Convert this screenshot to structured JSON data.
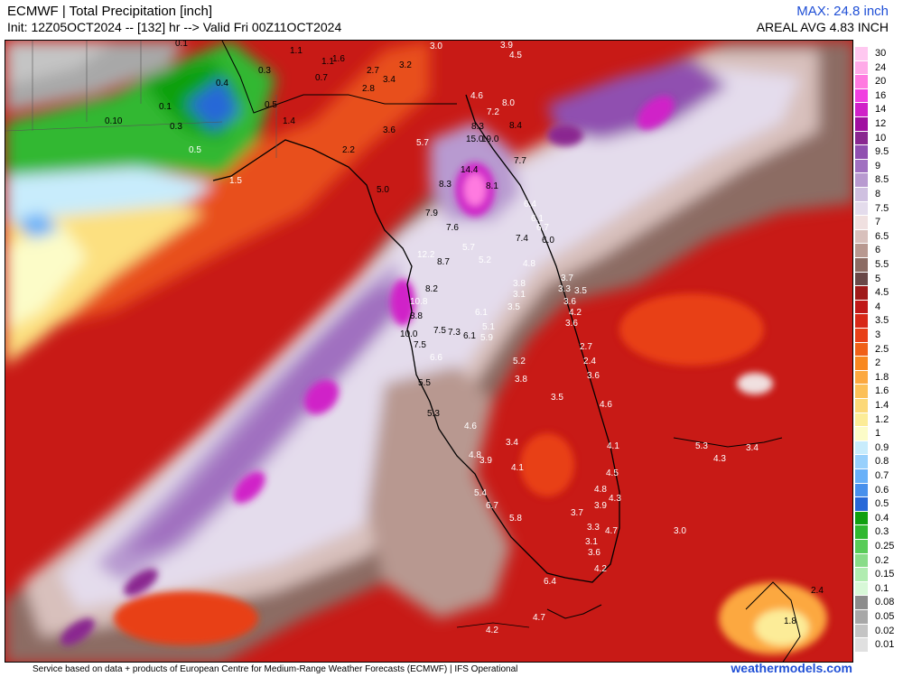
{
  "header": {
    "title": "ECMWF | Total Precipitation [inch]",
    "init": "Init: 12Z05OCT2024 -- [132] hr --> Valid Fri 00Z11OCT2024",
    "max": "MAX: 24.8 inch",
    "areal_avg": "AREAL AVG 4.83 INCH"
  },
  "footer": {
    "credit": "Service based on data + products of European Centre for Medium-Range Weather Forecasts (ECMWF) | IFS Operational",
    "brand": "weathermodels.com"
  },
  "legend": [
    {
      "label": "30",
      "color": "#ffc8f0"
    },
    {
      "label": "24",
      "color": "#ffaae8"
    },
    {
      "label": "20",
      "color": "#ff7ae0"
    },
    {
      "label": "16",
      "color": "#f040e0"
    },
    {
      "label": "14",
      "color": "#d020c8"
    },
    {
      "label": "12",
      "color": "#a010a0"
    },
    {
      "label": "10",
      "color": "#8a2890"
    },
    {
      "label": "9.5",
      "color": "#9050b0"
    },
    {
      "label": "9",
      "color": "#a070c0"
    },
    {
      "label": "8.5",
      "color": "#b89ad0"
    },
    {
      "label": "8",
      "color": "#cfc0e0"
    },
    {
      "label": "7.5",
      "color": "#e4dcec"
    },
    {
      "label": "7",
      "color": "#f0e0e0"
    },
    {
      "label": "6.5",
      "color": "#d8c0bc"
    },
    {
      "label": "6",
      "color": "#b89890"
    },
    {
      "label": "5.5",
      "color": "#8c6c64"
    },
    {
      "label": "5",
      "color": "#6a4848"
    },
    {
      "label": "4.5",
      "color": "#a01a1a"
    },
    {
      "label": "4",
      "color": "#c01818"
    },
    {
      "label": "3.5",
      "color": "#d82818"
    },
    {
      "label": "3",
      "color": "#e84018"
    },
    {
      "label": "2.5",
      "color": "#f06018"
    },
    {
      "label": "2",
      "color": "#f88820"
    },
    {
      "label": "1.8",
      "color": "#fca840"
    },
    {
      "label": "1.6",
      "color": "#fcc058"
    },
    {
      "label": "1.4",
      "color": "#fcd878"
    },
    {
      "label": "1.2",
      "color": "#fcec98"
    },
    {
      "label": "1",
      "color": "#fcfcc8"
    },
    {
      "label": "0.9",
      "color": "#c8ecfc"
    },
    {
      "label": "0.8",
      "color": "#98d0fc"
    },
    {
      "label": "0.7",
      "color": "#68b0f8"
    },
    {
      "label": "0.6",
      "color": "#4890ec"
    },
    {
      "label": "0.5",
      "color": "#2868d8"
    },
    {
      "label": "0.4",
      "color": "#10a010"
    },
    {
      "label": "0.3",
      "color": "#30b830"
    },
    {
      "label": "0.25",
      "color": "#58cc58"
    },
    {
      "label": "0.2",
      "color": "#88dc88"
    },
    {
      "label": "0.15",
      "color": "#b0ecb0"
    },
    {
      "label": "0.1",
      "color": "#d8f8d8"
    },
    {
      "label": "0.08",
      "color": "#8c8c8c"
    },
    {
      "label": "0.05",
      "color": "#a8a8a8"
    },
    {
      "label": "0.02",
      "color": "#c4c4c4"
    },
    {
      "label": "0.01",
      "color": "#e0e0e0"
    }
  ],
  "map_values": [
    {
      "t": "0.1",
      "c": "k"
    },
    {
      "t": "1.1",
      "c": "k"
    },
    {
      "t": "1.1",
      "c": "k"
    },
    {
      "t": "1.6",
      "c": "k"
    },
    {
      "t": "3.0",
      "c": "w"
    },
    {
      "t": "3.9",
      "c": "w"
    },
    {
      "t": "4.5",
      "c": "w"
    },
    {
      "t": "0.3",
      "c": "k"
    },
    {
      "t": "0.7",
      "c": "k"
    },
    {
      "t": "2.7",
      "c": "k"
    },
    {
      "t": "3.2",
      "c": "k"
    },
    {
      "t": "3.4",
      "c": "k"
    },
    {
      "t": "2.8",
      "c": "k"
    },
    {
      "t": "0.4",
      "c": "k"
    },
    {
      "t": "0.5",
      "c": "k"
    },
    {
      "t": "0.1",
      "c": "k"
    },
    {
      "t": "1.4",
      "c": "k"
    },
    {
      "t": "0.10",
      "c": "k"
    },
    {
      "t": "0.3",
      "c": "k"
    },
    {
      "t": "3.6",
      "c": "k"
    },
    {
      "t": "4.6",
      "c": "w"
    },
    {
      "t": "8.0",
      "c": "w"
    },
    {
      "t": "7.2",
      "c": "w"
    },
    {
      "t": "8.3",
      "c": "k"
    },
    {
      "t": "8.4",
      "c": "k"
    },
    {
      "t": "15.0",
      "c": "k"
    },
    {
      "t": "19.0",
      "c": "k"
    },
    {
      "t": "0.5",
      "c": "w"
    },
    {
      "t": "2.2",
      "c": "k"
    },
    {
      "t": "5.7",
      "c": "w"
    },
    {
      "t": "7.7",
      "c": "k"
    },
    {
      "t": "1.5",
      "c": "w"
    },
    {
      "t": "14.4",
      "c": "k"
    },
    {
      "t": "8.3",
      "c": "k"
    },
    {
      "t": "8.1",
      "c": "k"
    },
    {
      "t": "5.0",
      "c": "k"
    },
    {
      "t": "6.4",
      "c": "w"
    },
    {
      "t": "7.9",
      "c": "k"
    },
    {
      "t": "6.1",
      "c": "w"
    },
    {
      "t": "6.7",
      "c": "w"
    },
    {
      "t": "7.6",
      "c": "k"
    },
    {
      "t": "7.4",
      "c": "k"
    },
    {
      "t": "6.0",
      "c": "k"
    },
    {
      "t": "5.7",
      "c": "w"
    },
    {
      "t": "12.2",
      "c": "w"
    },
    {
      "t": "8.7",
      "c": "k"
    },
    {
      "t": "5.2",
      "c": "w"
    },
    {
      "t": "4.8",
      "c": "w"
    },
    {
      "t": "3.7",
      "c": "w"
    },
    {
      "t": "3.8",
      "c": "w"
    },
    {
      "t": "3.3",
      "c": "w"
    },
    {
      "t": "3.5",
      "c": "w"
    },
    {
      "t": "8.2",
      "c": "k"
    },
    {
      "t": "3.1",
      "c": "w"
    },
    {
      "t": "3.6",
      "c": "w"
    },
    {
      "t": "10.8",
      "c": "w"
    },
    {
      "t": "3.5",
      "c": "w"
    },
    {
      "t": "4.2",
      "c": "w"
    },
    {
      "t": "8.8",
      "c": "k"
    },
    {
      "t": "6.1",
      "c": "w"
    },
    {
      "t": "3.6",
      "c": "w"
    },
    {
      "t": "5.1",
      "c": "w"
    },
    {
      "t": "7.5",
      "c": "k"
    },
    {
      "t": "7.3",
      "c": "k"
    },
    {
      "t": "10.0",
      "c": "k"
    },
    {
      "t": "6.1",
      "c": "k"
    },
    {
      "t": "5.9",
      "c": "w"
    },
    {
      "t": "7.5",
      "c": "k"
    },
    {
      "t": "2.7",
      "c": "w"
    },
    {
      "t": "6.6",
      "c": "w"
    },
    {
      "t": "5.2",
      "c": "w"
    },
    {
      "t": "2.4",
      "c": "w"
    },
    {
      "t": "3.6",
      "c": "w"
    },
    {
      "t": "3.8",
      "c": "w"
    },
    {
      "t": "5.5",
      "c": "k"
    },
    {
      "t": "3.5",
      "c": "w"
    },
    {
      "t": "4.6",
      "c": "w"
    },
    {
      "t": "5.3",
      "c": "k"
    },
    {
      "t": "4.6",
      "c": "w"
    },
    {
      "t": "3.4",
      "c": "w"
    },
    {
      "t": "4.1",
      "c": "w"
    },
    {
      "t": "5.3",
      "c": "w"
    },
    {
      "t": "3.4",
      "c": "w"
    },
    {
      "t": "4.8",
      "c": "w"
    },
    {
      "t": "3.9",
      "c": "w"
    },
    {
      "t": "4.3",
      "c": "w"
    },
    {
      "t": "4.1",
      "c": "w"
    },
    {
      "t": "4.5",
      "c": "w"
    },
    {
      "t": "4.8",
      "c": "w"
    },
    {
      "t": "4.3",
      "c": "w"
    },
    {
      "t": "5.4",
      "c": "w"
    },
    {
      "t": "3.9",
      "c": "w"
    },
    {
      "t": "6.7",
      "c": "w"
    },
    {
      "t": "3.7",
      "c": "w"
    },
    {
      "t": "5.8",
      "c": "w"
    },
    {
      "t": "3.3",
      "c": "w"
    },
    {
      "t": "4.7",
      "c": "w"
    },
    {
      "t": "3.0",
      "c": "w"
    },
    {
      "t": "3.1",
      "c": "w"
    },
    {
      "t": "3.6",
      "c": "w"
    },
    {
      "t": "4.2",
      "c": "w"
    },
    {
      "t": "6.4",
      "c": "w"
    },
    {
      "t": "2.4",
      "c": "k"
    },
    {
      "t": "1.8",
      "c": "k"
    },
    {
      "t": "4.7",
      "c": "w"
    },
    {
      "t": "4.2",
      "c": "w"
    }
  ]
}
